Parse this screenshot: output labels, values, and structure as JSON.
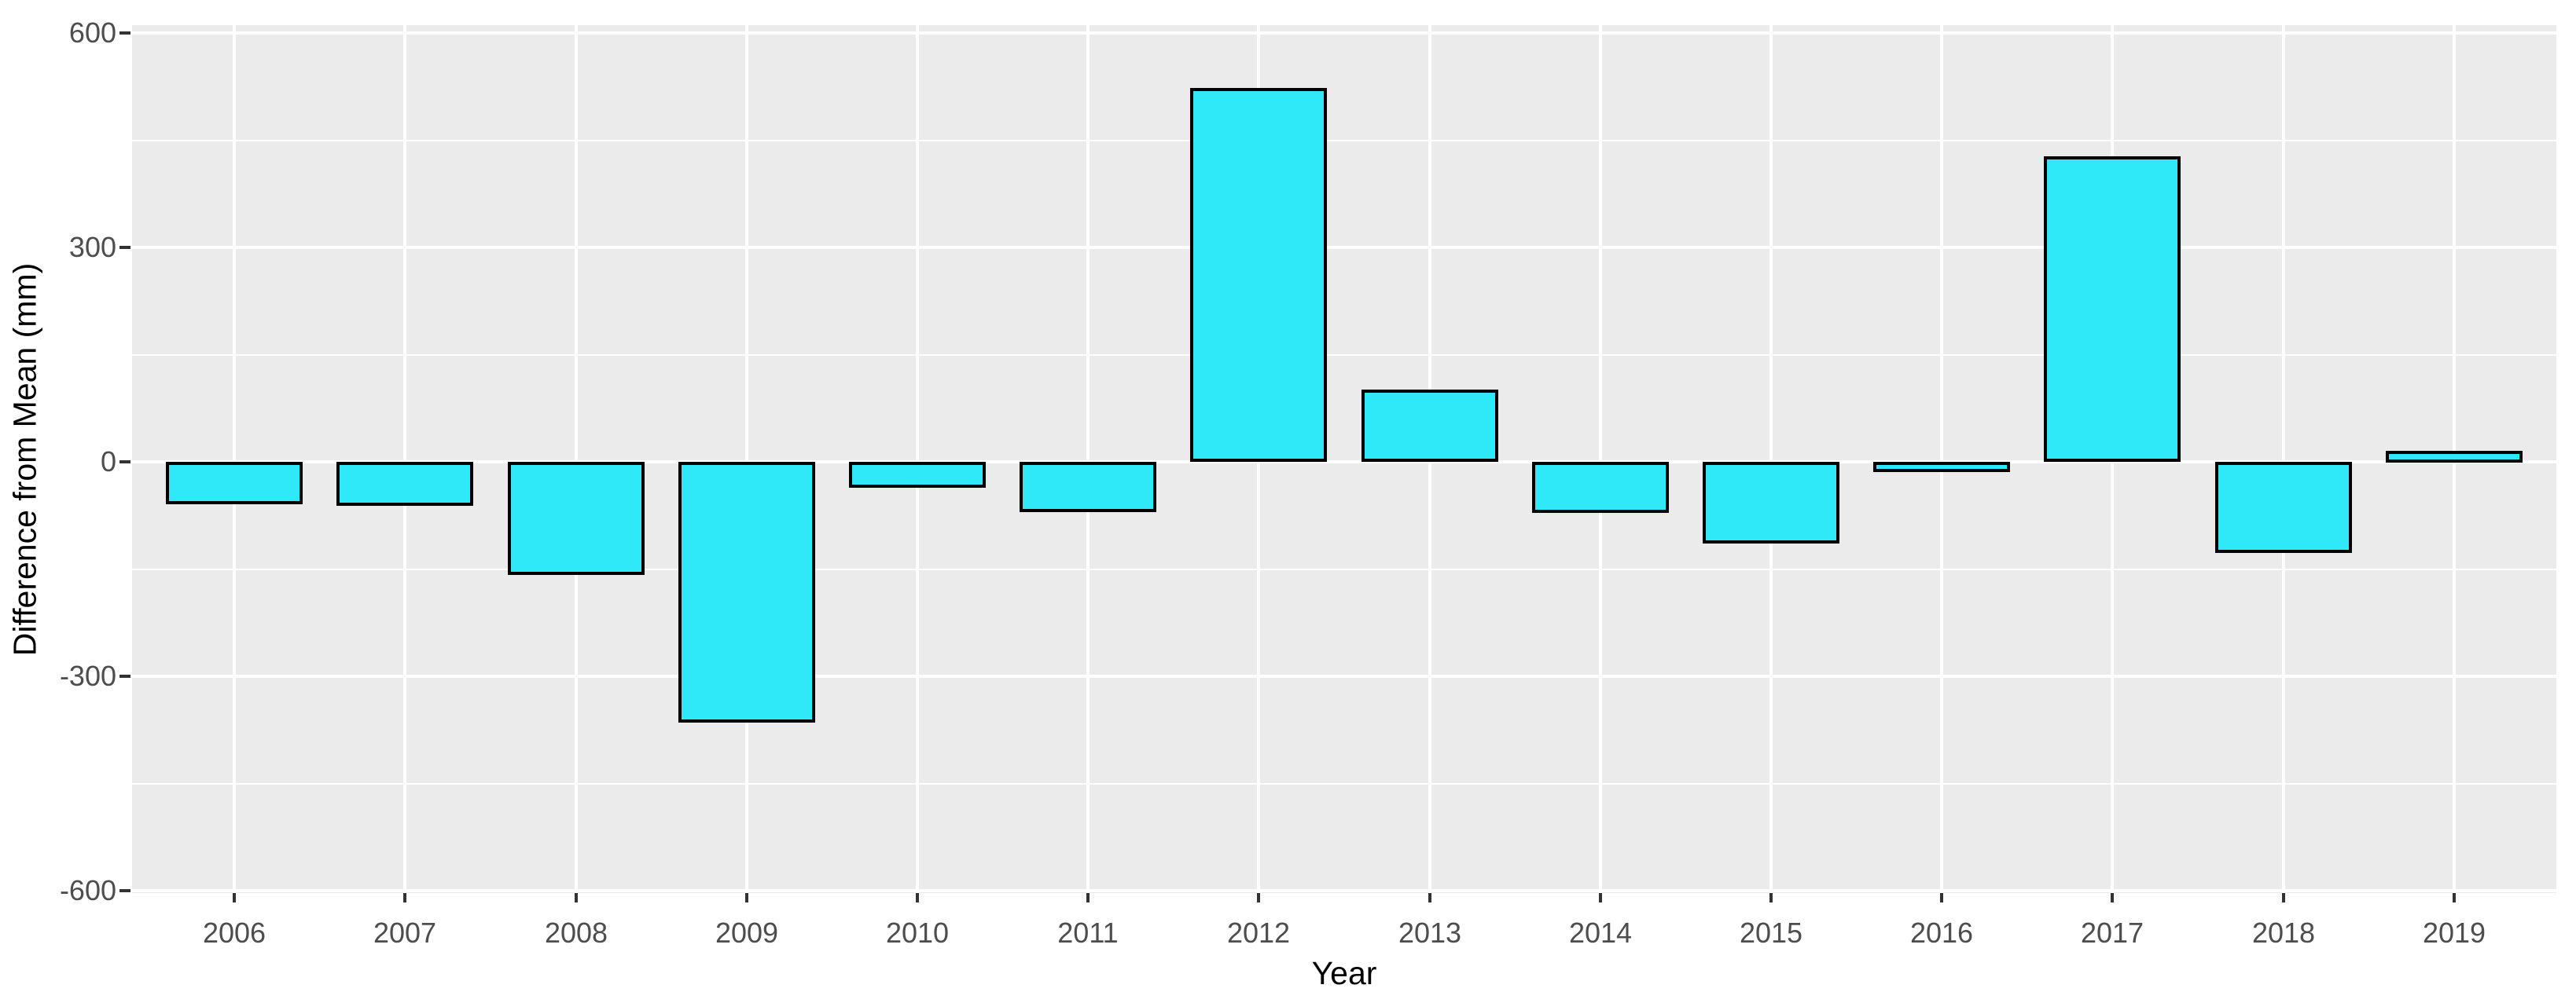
{
  "chart_data": {
    "type": "bar",
    "title": "",
    "categories": [
      "2006",
      "2007",
      "2008",
      "2009",
      "2010",
      "2011",
      "2012",
      "2013",
      "2014",
      "2015",
      "2016",
      "2017",
      "2018",
      "2019"
    ],
    "values": [
      -59,
      -61,
      -158,
      -365,
      -36,
      -70,
      523,
      101,
      -71,
      -114,
      -14,
      427,
      -127,
      16
    ],
    "xlabel": "Year",
    "ylabel": "Difference from Mean (mm)",
    "ylim": [
      -603,
      611
    ],
    "yticks": [
      -600,
      -300,
      0,
      300,
      600
    ],
    "ytick_labels": [
      "-600",
      "-300",
      "0",
      "300",
      "600"
    ],
    "yminor": [
      -450,
      -150,
      150,
      450
    ],
    "grid": "major and minor horizontal white lines, vertical white line at each category center, on grey panel",
    "legend": "none",
    "bar_fill": "#2FE9F9",
    "bar_stroke": "#000000",
    "panel_bg": "#EBEBEB",
    "grid_color": "#FFFFFF",
    "tick_label_color": "#4D4D4D",
    "axis_title_color": "#000000"
  }
}
